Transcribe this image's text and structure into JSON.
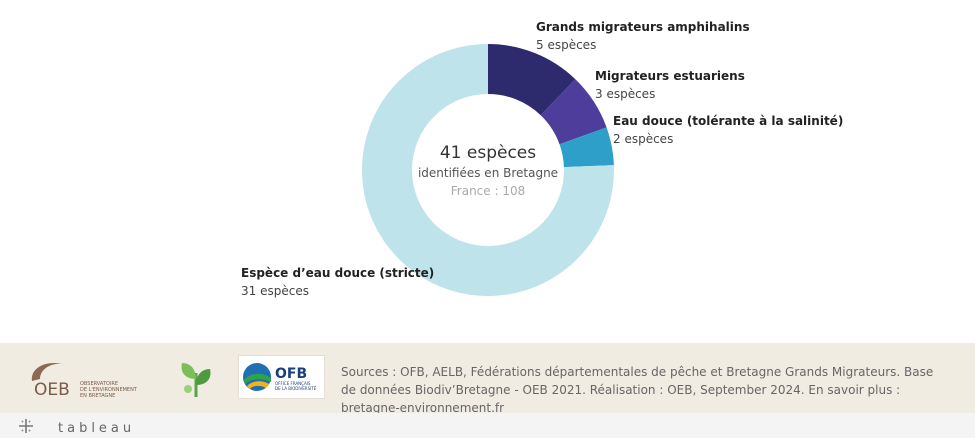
{
  "chart_data": {
    "type": "pie",
    "style": "donut",
    "slices": [
      {
        "label": "Grands migrateurs amphihalins",
        "count_text": "5 espèces",
        "value": 5,
        "color": "#2e2a6e"
      },
      {
        "label": "Migrateurs estuariens",
        "count_text": "3 espèces",
        "value": 3,
        "color": "#4f3d9c"
      },
      {
        "label": "Eau douce (tolérante à la salinité)",
        "count_text": "2 espèces",
        "value": 2,
        "color": "#2e9fc8"
      },
      {
        "label": "Espèce d’eau douce (stricte)",
        "count_text": "31 espèces",
        "value": 31,
        "color": "#bfe3ea"
      }
    ],
    "center": {
      "main": "41 espèces",
      "sub": "identifiées en Bretagne",
      "france": "France : 108"
    }
  },
  "footer": {
    "sources": "Sources : OFB, AELB, Fédérations départementales de pêche et Bretagne Grands Migrateurs. Base de données Biodiv’Bretagne - OEB 2021. Réalisation : OEB,  September 2024. En savoir plus : bretagne-environnement.fr",
    "oeb_logo_text": "OEB",
    "oeb_logo_caption": [
      "OBSERVATOIRE",
      "DE L'ENVIRONNEMENT",
      "EN BRETAGNE"
    ],
    "ofb_logo_text": "OFB",
    "ofb_logo_caption": [
      "OFFICE FRANÇAIS",
      "DE LA BIODIVERSITÉ"
    ]
  },
  "tableau": {
    "wordmark": "tableau"
  }
}
